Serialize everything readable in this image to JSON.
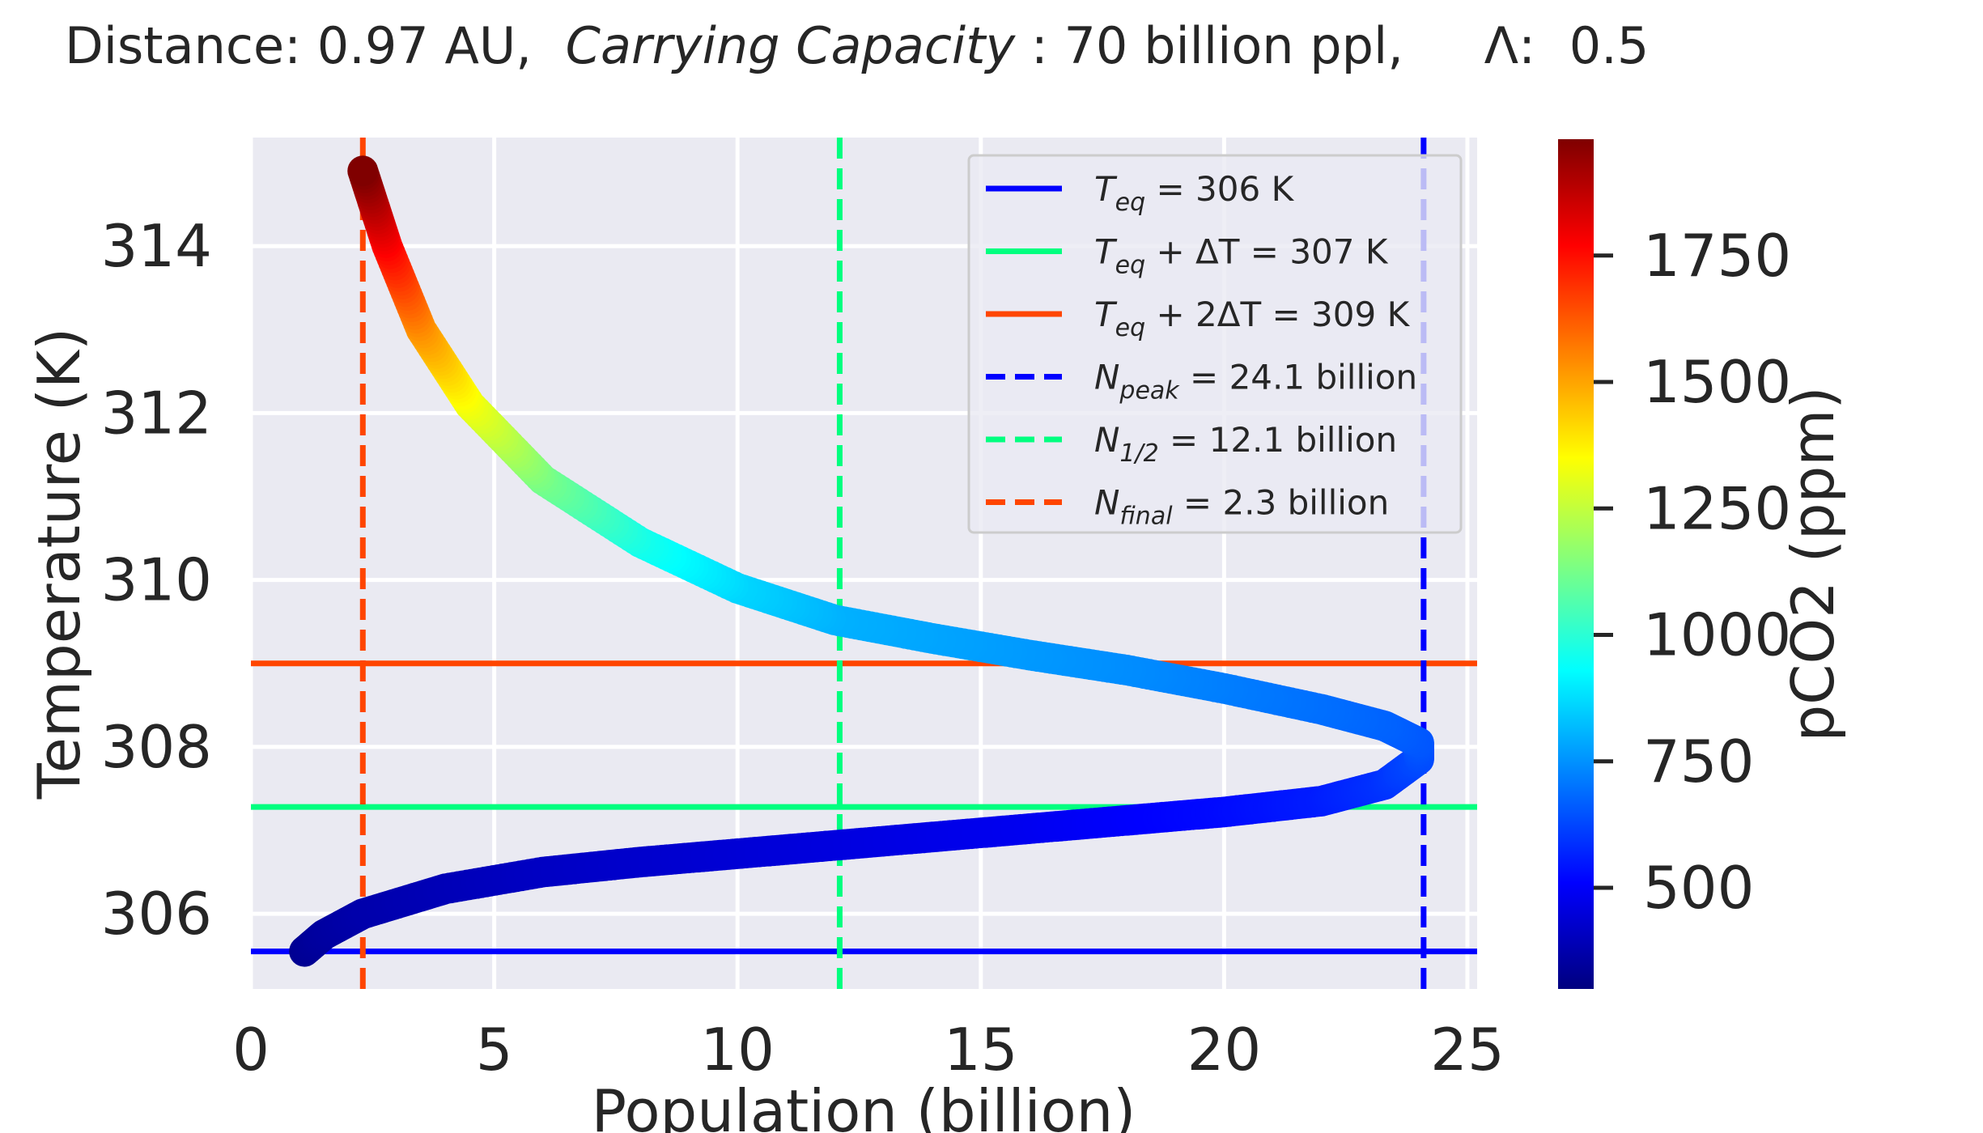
{
  "header": {
    "distance_label": "Distance: 0.97 AU,",
    "capacity_label": "Carrying Capacity",
    "capacity_value": ": 70 billion ppl,",
    "lambda_label": "Λ:",
    "lambda_value": "0.5"
  },
  "chart_data": {
    "type": "scatter",
    "xlabel": "Population (billion)",
    "ylabel": "Temperature (K)",
    "xlim": [
      0,
      25.2
    ],
    "ylim": [
      305.1,
      315.3
    ],
    "xticks": [
      "0",
      "5",
      "10",
      "15",
      "20",
      "25"
    ],
    "xtick_values": [
      0,
      5,
      10,
      15,
      20,
      25
    ],
    "yticks": [
      "306",
      "308",
      "310",
      "312",
      "314"
    ],
    "ytick_values": [
      306,
      308,
      310,
      312,
      314
    ],
    "grid": true,
    "colorbar": {
      "label": "pCO2 (ppm)",
      "range": [
        300,
        1980
      ],
      "ticks": [
        "500",
        "750",
        "1000",
        "1250",
        "1500",
        "1750"
      ],
      "tick_values": [
        500,
        750,
        1000,
        1250,
        1500,
        1750
      ],
      "colormap": "jet"
    },
    "trajectory": [
      {
        "population": 1.1,
        "temperature": 305.55,
        "pco2": 330
      },
      {
        "population": 1.5,
        "temperature": 305.75,
        "pco2": 350
      },
      {
        "population": 2.3,
        "temperature": 306.0,
        "pco2": 370
      },
      {
        "population": 4.0,
        "temperature": 306.3,
        "pco2": 390
      },
      {
        "population": 6.0,
        "temperature": 306.5,
        "pco2": 410
      },
      {
        "population": 8.0,
        "temperature": 306.62,
        "pco2": 425
      },
      {
        "population": 10.0,
        "temperature": 306.72,
        "pco2": 440
      },
      {
        "population": 12.0,
        "temperature": 306.82,
        "pco2": 455
      },
      {
        "population": 14.0,
        "temperature": 306.92,
        "pco2": 470
      },
      {
        "population": 16.0,
        "temperature": 307.02,
        "pco2": 485
      },
      {
        "population": 18.0,
        "temperature": 307.12,
        "pco2": 505
      },
      {
        "population": 20.0,
        "temperature": 307.22,
        "pco2": 525
      },
      {
        "population": 22.0,
        "temperature": 307.35,
        "pco2": 555
      },
      {
        "population": 23.3,
        "temperature": 307.55,
        "pco2": 590
      },
      {
        "population": 24.0,
        "temperature": 307.85,
        "pco2": 630
      },
      {
        "population": 24.0,
        "temperature": 308.05,
        "pco2": 650
      },
      {
        "population": 23.3,
        "temperature": 308.25,
        "pco2": 670
      },
      {
        "population": 22.0,
        "temperature": 308.45,
        "pco2": 690
      },
      {
        "population": 20.0,
        "temperature": 308.7,
        "pco2": 715
      },
      {
        "population": 18.0,
        "temperature": 308.92,
        "pco2": 740
      },
      {
        "population": 16.0,
        "temperature": 309.1,
        "pco2": 760
      },
      {
        "population": 14.0,
        "temperature": 309.3,
        "pco2": 780
      },
      {
        "population": 12.0,
        "temperature": 309.52,
        "pco2": 800
      },
      {
        "population": 10.0,
        "temperature": 309.9,
        "pco2": 860
      },
      {
        "population": 8.0,
        "temperature": 310.45,
        "pco2": 960
      },
      {
        "population": 6.0,
        "temperature": 311.2,
        "pco2": 1120
      },
      {
        "population": 4.5,
        "temperature": 312.1,
        "pco2": 1320
      },
      {
        "population": 3.5,
        "temperature": 313.0,
        "pco2": 1520
      },
      {
        "population": 2.8,
        "temperature": 314.0,
        "pco2": 1760
      },
      {
        "population": 2.3,
        "temperature": 314.9,
        "pco2": 1980
      }
    ],
    "reference_lines": [
      {
        "orientation": "horizontal",
        "value": 305.55,
        "color": "#0000ff",
        "style": "solid",
        "label_main": "T",
        "label_sub": "eq",
        "label_rest": " = 306 K"
      },
      {
        "orientation": "horizontal",
        "value": 307.28,
        "color": "#00ff7f",
        "style": "solid",
        "label_main": "T",
        "label_sub": "eq",
        "label_rest": " + ΔT = 307 K"
      },
      {
        "orientation": "horizontal",
        "value": 309.0,
        "color": "#ff4500",
        "style": "solid",
        "label_main": "T",
        "label_sub": "eq",
        "label_rest": " + 2ΔT = 309 K"
      },
      {
        "orientation": "vertical",
        "value": 24.1,
        "color": "#0000ff",
        "style": "dashed",
        "label_main": "N",
        "label_sub": "peak",
        "label_rest": " = 24.1 billion"
      },
      {
        "orientation": "vertical",
        "value": 12.1,
        "color": "#00ff7f",
        "style": "dashed",
        "label_main": "N",
        "label_sub": "1/2",
        "label_rest": " = 12.1 billion"
      },
      {
        "orientation": "vertical",
        "value": 2.3,
        "color": "#ff4500",
        "style": "dashed",
        "label_main": "N",
        "label_sub": "final",
        "label_rest": " = 2.3 billion"
      }
    ]
  }
}
